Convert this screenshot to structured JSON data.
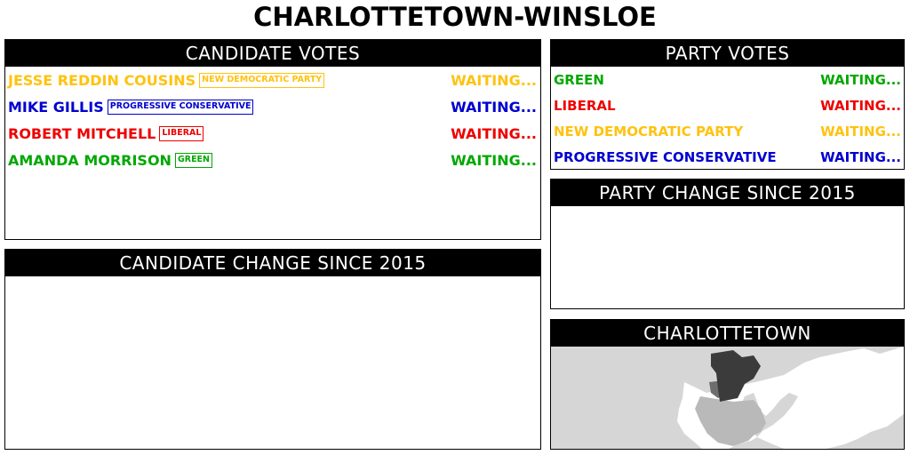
{
  "title": "CHARLOTTETOWN-WINSLOE",
  "colors": {
    "new_democratic_party": "#ffc20e",
    "progressive_conservative": "#0000d0",
    "liberal": "#ee0000",
    "green": "#00a800"
  },
  "candidate_votes": {
    "header": "CANDIDATE VOTES",
    "rows": [
      {
        "name": "JESSE REDDIN COUSINS",
        "party": "NEW DEMOCRATIC PARTY",
        "status": "WAITING..."
      },
      {
        "name": "MIKE GILLIS",
        "party": "PROGRESSIVE CONSERVATIVE",
        "status": "WAITING..."
      },
      {
        "name": "ROBERT MITCHELL",
        "party": "LIBERAL",
        "status": "WAITING..."
      },
      {
        "name": "AMANDA MORRISON",
        "party": "GREEN",
        "status": "WAITING..."
      }
    ]
  },
  "candidate_change": {
    "header": "CANDIDATE CHANGE SINCE 2015"
  },
  "party_votes": {
    "header": "PARTY VOTES",
    "rows": [
      {
        "party": "GREEN",
        "status": "WAITING..."
      },
      {
        "party": "LIBERAL",
        "status": "WAITING..."
      },
      {
        "party": "NEW DEMOCRATIC PARTY",
        "status": "WAITING..."
      },
      {
        "party": "PROGRESSIVE CONSERVATIVE",
        "status": "WAITING..."
      }
    ]
  },
  "party_change": {
    "header": "PARTY CHANGE SINCE 2015"
  },
  "map": {
    "header": "CHARLOTTETOWN"
  }
}
